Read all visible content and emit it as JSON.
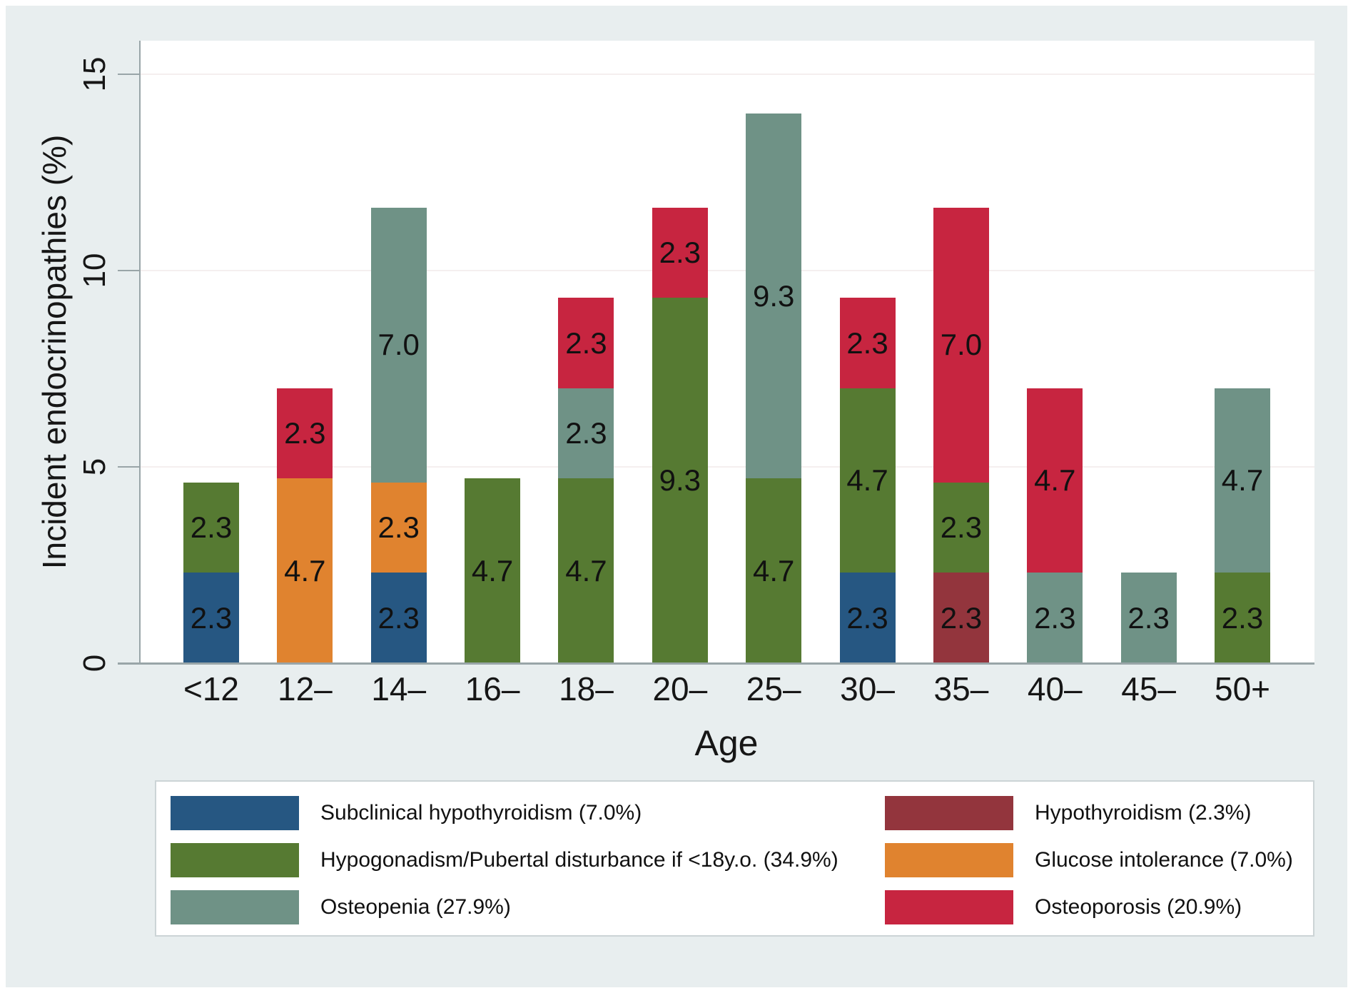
{
  "figure": {
    "background": "#e8eeef",
    "plot_background": "#ffffff",
    "axis_color": "#99a5a8",
    "grid_color": "#f5efef",
    "text_color": "#161616"
  },
  "chart_data": {
    "type": "bar",
    "stacked": true,
    "title": "",
    "xlabel": "Age",
    "ylabel": "Incident endocrinopathies (%)",
    "ylim": [
      0,
      15.85
    ],
    "grid": true,
    "legend_position": "bottom",
    "yticks": [
      {
        "value": 0,
        "label": "0"
      },
      {
        "value": 5,
        "label": "5"
      },
      {
        "value": 10,
        "label": "10"
      },
      {
        "value": 15,
        "label": "15"
      }
    ],
    "categories": [
      "<12",
      "12–",
      "14–",
      "16–",
      "18–",
      "20–",
      "25–",
      "30–",
      "35–",
      "40–",
      "45–",
      "50+"
    ],
    "series_colors": {
      "subclinical-hypothyroidism": "#265782",
      "hypogonadism-pubertal-disturbance": "#567a32",
      "osteopenia": "#6f9286",
      "hypothyroidism": "#93353d",
      "glucose-intolerance": "#e0832f",
      "osteoporosis": "#c72540"
    },
    "bars": [
      {
        "category": "<12",
        "segments": [
          {
            "series": "subclinical-hypothyroidism",
            "value": 2.3,
            "label": "2.3"
          },
          {
            "series": "hypogonadism-pubertal-disturbance",
            "value": 2.3,
            "label": "2.3"
          }
        ]
      },
      {
        "category": "12–",
        "segments": [
          {
            "series": "glucose-intolerance",
            "value": 4.7,
            "label": "4.7"
          },
          {
            "series": "osteoporosis",
            "value": 2.3,
            "label": "2.3"
          }
        ]
      },
      {
        "category": "14–",
        "segments": [
          {
            "series": "subclinical-hypothyroidism",
            "value": 2.3,
            "label": "2.3"
          },
          {
            "series": "glucose-intolerance",
            "value": 2.3,
            "label": "2.3"
          },
          {
            "series": "osteopenia",
            "value": 7.0,
            "label": "7.0"
          }
        ]
      },
      {
        "category": "16–",
        "segments": [
          {
            "series": "hypogonadism-pubertal-disturbance",
            "value": 4.7,
            "label": "4.7"
          }
        ]
      },
      {
        "category": "18–",
        "segments": [
          {
            "series": "hypogonadism-pubertal-disturbance",
            "value": 4.7,
            "label": "4.7"
          },
          {
            "series": "osteopenia",
            "value": 2.3,
            "label": "2.3"
          },
          {
            "series": "osteoporosis",
            "value": 2.3,
            "label": "2.3"
          }
        ]
      },
      {
        "category": "20–",
        "segments": [
          {
            "series": "hypogonadism-pubertal-disturbance",
            "value": 9.3,
            "label": "9.3"
          },
          {
            "series": "osteoporosis",
            "value": 2.3,
            "label": "2.3"
          }
        ]
      },
      {
        "category": "25–",
        "segments": [
          {
            "series": "hypogonadism-pubertal-disturbance",
            "value": 4.7,
            "label": "4.7"
          },
          {
            "series": "osteopenia",
            "value": 9.3,
            "label": "9.3"
          }
        ]
      },
      {
        "category": "30–",
        "segments": [
          {
            "series": "subclinical-hypothyroidism",
            "value": 2.3,
            "label": "2.3"
          },
          {
            "series": "hypogonadism-pubertal-disturbance",
            "value": 4.7,
            "label": "4.7"
          },
          {
            "series": "osteoporosis",
            "value": 2.3,
            "label": "2.3"
          }
        ]
      },
      {
        "category": "35–",
        "segments": [
          {
            "series": "hypothyroidism",
            "value": 2.3,
            "label": "2.3"
          },
          {
            "series": "hypogonadism-pubertal-disturbance",
            "value": 2.3,
            "label": "2.3"
          },
          {
            "series": "osteoporosis",
            "value": 7.0,
            "label": "7.0"
          }
        ]
      },
      {
        "category": "40–",
        "segments": [
          {
            "series": "osteopenia",
            "value": 2.3,
            "label": "2.3"
          },
          {
            "series": "osteoporosis",
            "value": 4.7,
            "label": "4.7"
          }
        ]
      },
      {
        "category": "45–",
        "segments": [
          {
            "series": "osteopenia",
            "value": 2.3,
            "label": "2.3"
          }
        ]
      },
      {
        "category": "50+",
        "segments": [
          {
            "series": "hypogonadism-pubertal-disturbance",
            "value": 2.3,
            "label": "2.3"
          },
          {
            "series": "osteopenia",
            "value": 4.7,
            "label": "4.7"
          }
        ]
      }
    ],
    "legend": {
      "left": [
        {
          "series": "subclinical-hypothyroidism",
          "label": "Subclinical hypothyroidism (7.0%)"
        },
        {
          "series": "hypogonadism-pubertal-disturbance",
          "label": "Hypogonadism/Pubertal disturbance if <18y.o. (34.9%)"
        },
        {
          "series": "osteopenia",
          "label": "Osteopenia (27.9%)"
        }
      ],
      "right": [
        {
          "series": "hypothyroidism",
          "label": "Hypothyroidism (2.3%)"
        },
        {
          "series": "glucose-intolerance",
          "label": "Glucose intolerance (7.0%)"
        },
        {
          "series": "osteoporosis",
          "label": "Osteoporosis (20.9%)"
        }
      ]
    }
  }
}
